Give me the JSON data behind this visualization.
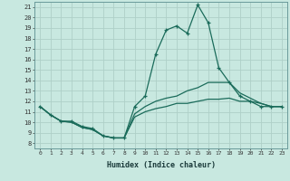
{
  "xlabel": "Humidex (Indice chaleur)",
  "bg_color": "#c8e8e0",
  "grid_color": "#aed0c8",
  "line_color": "#1a6b5a",
  "xlim": [
    -0.5,
    23.5
  ],
  "ylim": [
    7.5,
    21.5
  ],
  "yticks": [
    8,
    9,
    10,
    11,
    12,
    13,
    14,
    15,
    16,
    17,
    18,
    19,
    20,
    21
  ],
  "xticks": [
    0,
    1,
    2,
    3,
    4,
    5,
    6,
    7,
    8,
    9,
    10,
    11,
    12,
    13,
    14,
    15,
    16,
    17,
    18,
    19,
    20,
    21,
    22,
    23
  ],
  "series": [
    {
      "x": [
        0,
        1,
        2,
        3,
        4,
        5,
        6,
        7,
        8,
        9,
        10,
        11,
        12,
        13,
        14,
        15,
        16,
        17,
        18,
        19,
        20,
        21,
        22,
        23
      ],
      "y": [
        11.5,
        10.7,
        10.1,
        10.1,
        9.6,
        9.4,
        8.7,
        8.5,
        8.5,
        11.5,
        12.5,
        16.5,
        18.8,
        19.2,
        18.5,
        21.2,
        19.5,
        15.2,
        13.8,
        12.5,
        12.0,
        11.5,
        11.5,
        11.5
      ],
      "marker": true
    },
    {
      "x": [
        0,
        1,
        2,
        3,
        4,
        5,
        6,
        7,
        8,
        9,
        10,
        11,
        12,
        13,
        14,
        15,
        16,
        17,
        18,
        19,
        20,
        21,
        22,
        23
      ],
      "y": [
        11.5,
        10.7,
        10.1,
        10.0,
        9.5,
        9.3,
        8.7,
        8.5,
        8.5,
        10.8,
        11.5,
        12.0,
        12.3,
        12.5,
        13.0,
        13.3,
        13.8,
        13.8,
        13.8,
        12.8,
        12.3,
        11.8,
        11.5,
        11.5
      ],
      "marker": false
    },
    {
      "x": [
        0,
        1,
        2,
        3,
        4,
        5,
        6,
        7,
        8,
        9,
        10,
        11,
        12,
        13,
        14,
        15,
        16,
        17,
        18,
        19,
        20,
        21,
        22,
        23
      ],
      "y": [
        11.5,
        10.7,
        10.1,
        10.0,
        9.5,
        9.3,
        8.7,
        8.5,
        8.5,
        10.5,
        11.0,
        11.3,
        11.5,
        11.8,
        11.8,
        12.0,
        12.2,
        12.2,
        12.3,
        12.0,
        12.0,
        11.8,
        11.5,
        11.5
      ],
      "marker": false
    }
  ]
}
